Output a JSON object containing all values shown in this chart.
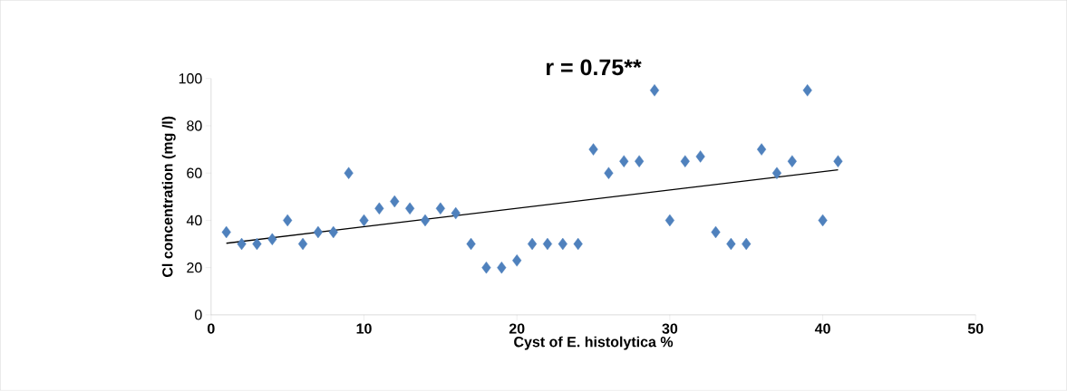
{
  "chart_data": {
    "type": "scatter",
    "title": "r = 0.75**",
    "xlabel": "Cyst of E. histolytica %",
    "ylabel": "Cl concentration  (mg /l)",
    "xlim": [
      0,
      50
    ],
    "xticks": [
      0,
      10,
      20,
      30,
      40,
      50
    ],
    "ylim": [
      0,
      100
    ],
    "yticks": [
      0,
      20,
      40,
      60,
      80,
      100
    ],
    "grid": false,
    "series": [
      {
        "color": "#4f81bd",
        "marker": "diamond",
        "x": [
          1,
          2,
          3,
          4,
          5,
          6,
          7,
          8,
          9,
          10,
          11,
          12,
          13,
          14,
          15,
          16,
          17,
          18,
          19,
          20,
          21,
          22,
          23,
          24,
          25,
          26,
          27,
          28,
          29,
          30,
          31,
          32,
          33,
          34,
          35,
          36,
          37,
          38,
          39,
          40,
          41
        ],
        "values": [
          35,
          30,
          30,
          32,
          40,
          30,
          35,
          35,
          60,
          40,
          45,
          48,
          45,
          40,
          45,
          43,
          30,
          20,
          20,
          23,
          30,
          30,
          30,
          30,
          70,
          60,
          65,
          65,
          95,
          40,
          65,
          67,
          35,
          30,
          30,
          70,
          60,
          65,
          95,
          40,
          65
        ]
      },
      {
        "type": "line",
        "color": "#000000",
        "marker": "none",
        "x": [
          1,
          41
        ],
        "values": [
          30.3,
          61.4
        ]
      }
    ]
  }
}
